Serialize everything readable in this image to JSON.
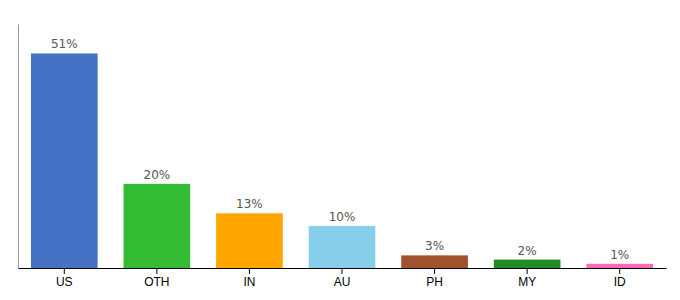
{
  "chart_data": {
    "type": "bar",
    "categories": [
      "US",
      "OTH",
      "IN",
      "AU",
      "PH",
      "MY",
      "ID"
    ],
    "values": [
      51,
      20,
      13,
      10,
      3,
      2,
      1
    ],
    "value_labels": [
      "51%",
      "20%",
      "13%",
      "10%",
      "3%",
      "2%",
      "1%"
    ],
    "data_labels": true,
    "colors": [
      "#4472C4",
      "#33BB33",
      "#FFA500",
      "#87CEEB",
      "#A0522D",
      "#228B22",
      "#FF69B4"
    ],
    "ylim": [
      0,
      58
    ],
    "tick_labels": "x",
    "grid": false
  }
}
